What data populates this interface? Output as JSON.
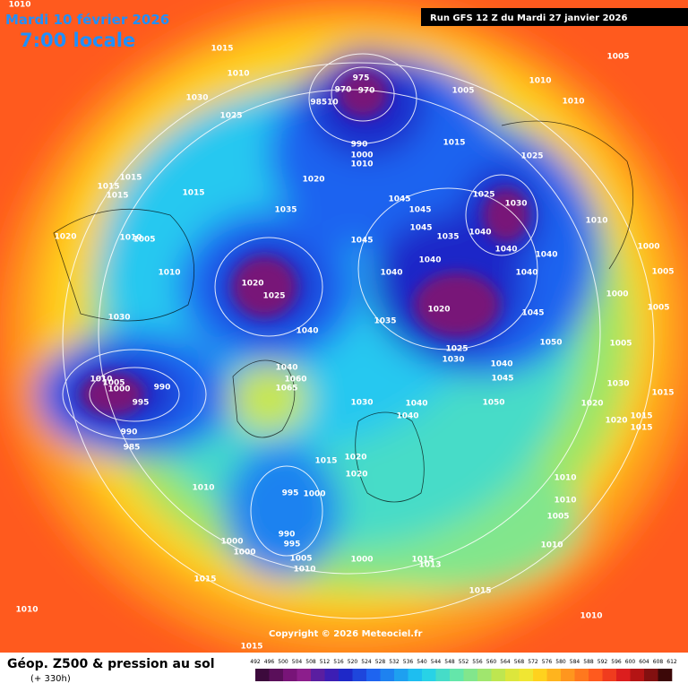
{
  "header": {
    "date": "Mardi 10 février 2026",
    "time": "7:00 locale",
    "run": "Run GFS 12 Z du Mardi 27 janvier 2026"
  },
  "footer": {
    "title": "Géop. Z500 & pression au sol",
    "subtitle": "(+ 330h)",
    "copyright": "Copyright © 2026 Meteociel.fr"
  },
  "legend": {
    "levels": [
      492,
      496,
      500,
      504,
      508,
      512,
      516,
      520,
      524,
      528,
      532,
      536,
      540,
      544,
      548,
      552,
      556,
      560,
      564,
      568,
      572,
      576,
      580,
      584,
      588,
      592,
      596,
      600,
      604,
      608,
      612
    ],
    "colors": [
      "#3c0a3c",
      "#5a0f5a",
      "#781478",
      "#8c1e8c",
      "#5a1ea0",
      "#3c1eb4",
      "#1e28c8",
      "#1e46dc",
      "#1e64f0",
      "#1e82f0",
      "#1ea0f0",
      "#1ebef0",
      "#28d2e6",
      "#46dcc8",
      "#64e6aa",
      "#82e68c",
      "#a0e66e",
      "#bee650",
      "#dce63c",
      "#f0e632",
      "#ffd21e",
      "#ffb41e",
      "#ff961e",
      "#ff781e",
      "#ff5a1e",
      "#f03c1e",
      "#dc1e1e",
      "#b41414",
      "#821010",
      "#3c0808"
    ]
  },
  "pressure_labels": [
    "1010",
    "1015",
    "1010",
    "1030",
    "1025",
    "975",
    "970",
    "970",
    "98510",
    "1005",
    "1010",
    "1010",
    "1005",
    "990",
    "1000",
    "1010",
    "1015",
    "1025",
    "1015",
    "1015",
    "1015",
    "1015",
    "1020",
    "1025",
    "1030",
    "1045",
    "1045",
    "1035",
    "1020",
    "1010",
    "1005",
    "1045",
    "1040",
    "1035",
    "1045",
    "1040",
    "1010",
    "1000",
    "1040",
    "1040",
    "1010",
    "1040",
    "1040",
    "1005",
    "1020",
    "1025",
    "1000",
    "1020",
    "1045",
    "1005",
    "1030",
    "1035",
    "1040",
    "1050",
    "1005",
    "1025",
    "1030",
    "1040",
    "1040",
    "1060",
    "1065",
    "1010",
    "1005",
    "1000",
    "990",
    "1045",
    "1030",
    "995",
    "1030",
    "1040",
    "1050",
    "1020",
    "1015",
    "1040",
    "1020",
    "1015",
    "1015",
    "990",
    "985",
    "1015",
    "1020",
    "1020",
    "1010",
    "995",
    "1000",
    "1010",
    "1010",
    "1005",
    "990",
    "995",
    "1000",
    "1000",
    "1010",
    "1005",
    "1010",
    "1000",
    "1015",
    "1013",
    "1015",
    "1015",
    "1010",
    "1010",
    "1015"
  ]
}
